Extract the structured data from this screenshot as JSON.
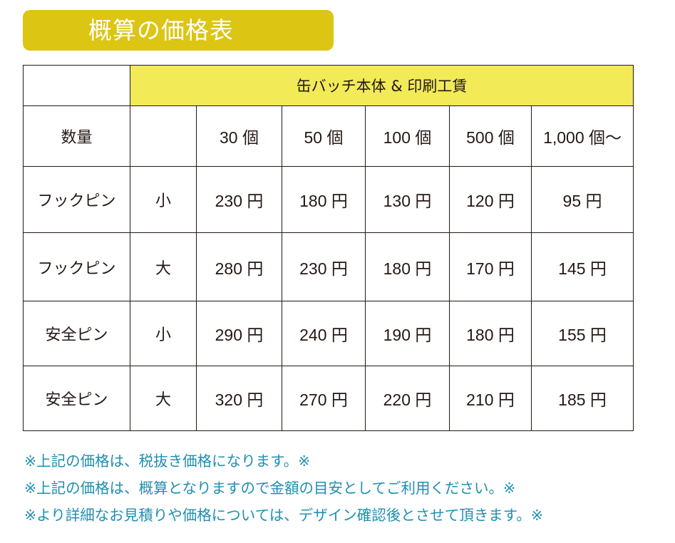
{
  "title": "概算の価格表",
  "table": {
    "header": "缶バッチ本体 & 印刷工賃",
    "quantity_label": "数量",
    "quantities": [
      "30 個",
      "50 個",
      "100 個",
      "500 個",
      "1,000 個～"
    ],
    "rows": [
      {
        "type": "フックピン",
        "size": "小",
        "prices": [
          "230 円",
          "180 円",
          "130 円",
          "120 円",
          "95 円"
        ]
      },
      {
        "type": "フックピン",
        "size": "大",
        "prices": [
          "280 円",
          "230 円",
          "180 円",
          "170 円",
          "145 円"
        ]
      },
      {
        "type": "安全ピン",
        "size": "小",
        "prices": [
          "290 円",
          "240 円",
          "190 円",
          "180 円",
          "155 円"
        ]
      },
      {
        "type": "安全ピン",
        "size": "大",
        "prices": [
          "320 円",
          "270 円",
          "220 円",
          "210 円",
          "185 円"
        ]
      }
    ]
  },
  "notes": [
    "※上記の価格は、税抜き価格になります。※",
    "※上記の価格は、概算となりますので金額の目安としてご利用ください。※",
    "※より詳細なお見積りや価格については、デザイン確認後とさせて頂きます。※"
  ],
  "colors": {
    "title_bg": "#dcc513",
    "header_bg": "#f2ea57",
    "note_text": "#1f8fb0"
  }
}
